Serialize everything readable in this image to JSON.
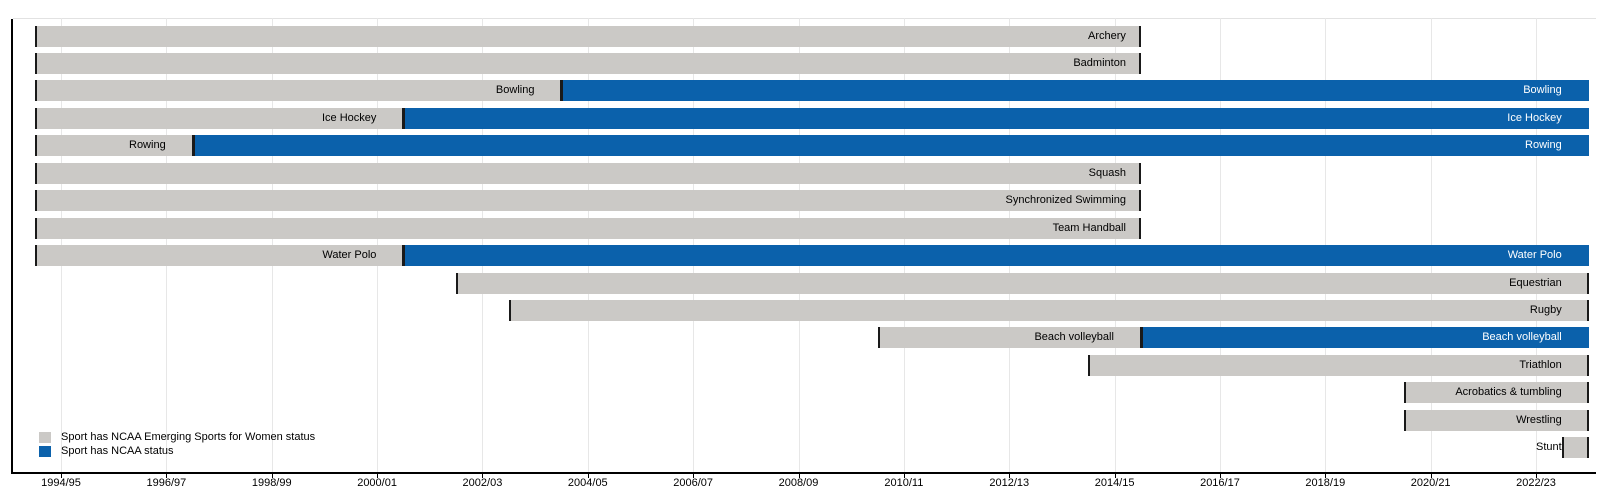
{
  "chart_data": {
    "type": "bar",
    "subtype": "gantt-timeline",
    "title": "",
    "description": "Timeline of NCAA Emerging Sports for Women status and NCAA status by sport and academic year",
    "x_axis": {
      "tick_labels": [
        "1994/95",
        "1996/97",
        "1998/99",
        "2000/01",
        "2002/03",
        "2004/05",
        "2006/07",
        "2008/09",
        "2010/11",
        "2012/13",
        "2014/15",
        "2016/17",
        "2018/19",
        "2020/21",
        "2022/23"
      ],
      "first_tick_year": 1994,
      "tick_interval_years": 2,
      "grid": true
    },
    "legend": [
      {
        "key": "emerging",
        "label": "Sport has NCAA Emerging Sports for Women status",
        "color": "#cbc9c6"
      },
      {
        "key": "ncaa",
        "label": "Sport has NCAA status",
        "color": "#0b61ab"
      }
    ],
    "sports": [
      {
        "name": "Archery",
        "emerging_start": 1994.1,
        "ncaa_start": null,
        "end": 2015.1
      },
      {
        "name": "Badminton",
        "emerging_start": 1994.1,
        "ncaa_start": null,
        "end": 2015.1
      },
      {
        "name": "Bowling",
        "emerging_start": 1994.1,
        "ncaa_start": 2004.1,
        "end": 2023.6
      },
      {
        "name": "Ice Hockey",
        "emerging_start": 1994.1,
        "ncaa_start": 2001.1,
        "end": 2023.6
      },
      {
        "name": "Rowing",
        "emerging_start": 1994.1,
        "ncaa_start": 1997.1,
        "end": 2023.6
      },
      {
        "name": "Squash",
        "emerging_start": 1994.1,
        "ncaa_start": null,
        "end": 2015.1
      },
      {
        "name": "Synchronized Swimming",
        "emerging_start": 1994.1,
        "ncaa_start": null,
        "end": 2015.1
      },
      {
        "name": "Team Handball",
        "emerging_start": 1994.1,
        "ncaa_start": null,
        "end": 2015.1
      },
      {
        "name": "Water Polo",
        "emerging_start": 1994.1,
        "ncaa_start": 2001.1,
        "end": 2023.6
      },
      {
        "name": "Equestrian",
        "emerging_start": 2002.1,
        "ncaa_start": null,
        "end": 2023.6
      },
      {
        "name": "Rugby",
        "emerging_start": 2003.1,
        "ncaa_start": null,
        "end": 2023.6
      },
      {
        "name": "Beach volleyball",
        "emerging_start": 2010.1,
        "ncaa_start": 2015.1,
        "end": 2023.6
      },
      {
        "name": "Triathlon",
        "emerging_start": 2014.1,
        "ncaa_start": null,
        "end": 2023.6
      },
      {
        "name": "Acrobatics & tumbling",
        "emerging_start": 2020.1,
        "ncaa_start": null,
        "end": 2023.6
      },
      {
        "name": "Wrestling",
        "emerging_start": 2020.1,
        "ncaa_start": null,
        "end": 2023.6
      },
      {
        "name": "Stunt",
        "emerging_start": 2023.1,
        "ncaa_start": null,
        "end": 2023.6
      }
    ]
  },
  "colors": {
    "emerging_bar": "#cbc9c6",
    "ncaa_bar": "#0b61ab",
    "segment_tick": "#1a1a1a",
    "gridline": "#e7e7e7",
    "top_hairline": "#e2e2e2",
    "axis": "#000000",
    "background": "#ffffff"
  }
}
